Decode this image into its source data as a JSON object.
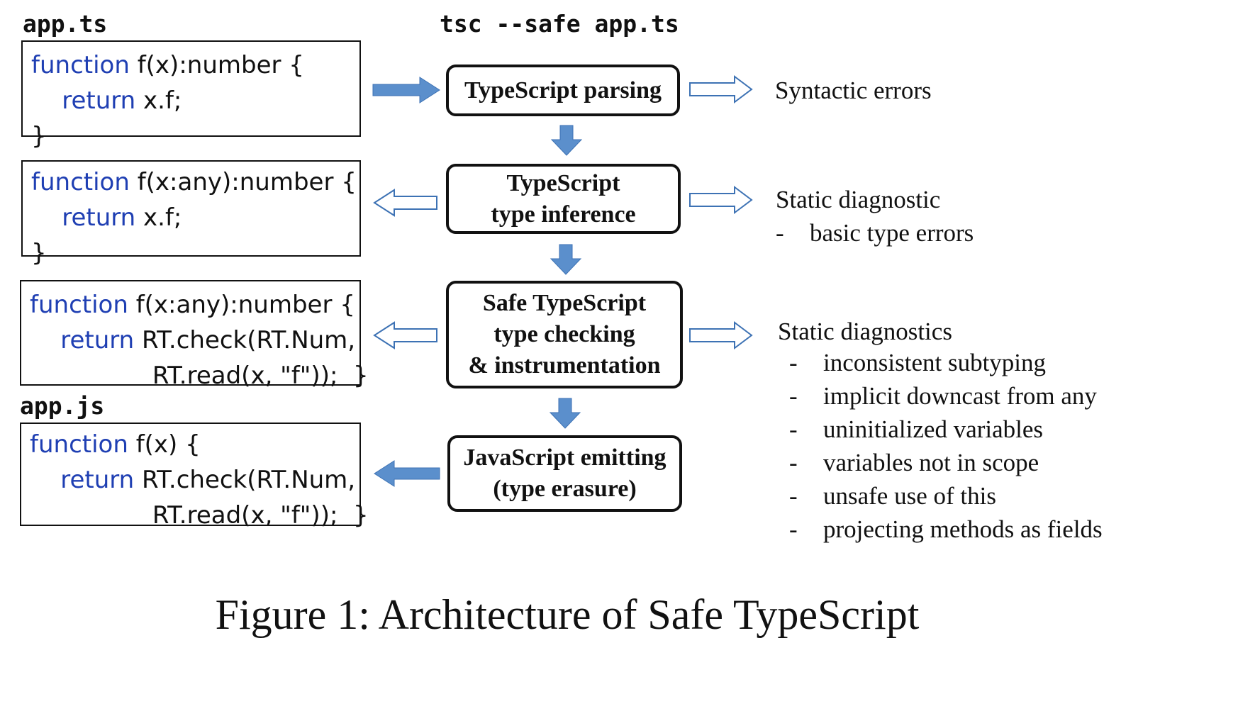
{
  "labels": {
    "app_ts": "app.ts",
    "command": "tsc --safe app.ts",
    "app_js": "app.js"
  },
  "code_boxes": [
    {
      "lines": [
        [
          {
            "kw": "function"
          },
          {
            "t": " f(x):number {"
          }
        ],
        [
          {
            "t": "    "
          },
          {
            "kw": "return"
          },
          {
            "t": " x.f;"
          }
        ],
        [
          {
            "t": "}"
          }
        ]
      ]
    },
    {
      "lines": [
        [
          {
            "kw": "function"
          },
          {
            "t": " f(x:any):number {"
          }
        ],
        [
          {
            "t": "    "
          },
          {
            "kw": "return"
          },
          {
            "t": " x.f;"
          }
        ],
        [
          {
            "t": "}"
          }
        ]
      ]
    },
    {
      "lines": [
        [
          {
            "kw": "function"
          },
          {
            "t": " f(x:any):number {"
          }
        ],
        [
          {
            "t": "    "
          },
          {
            "kw": "return"
          },
          {
            "t": " RT.check(RT.Num,"
          }
        ],
        [
          {
            "t": "                RT.read(x, \"f\"));  }"
          }
        ]
      ]
    },
    {
      "lines": [
        [
          {
            "kw": "function"
          },
          {
            "t": " f(x) {"
          }
        ],
        [
          {
            "t": "    "
          },
          {
            "kw": "return"
          },
          {
            "t": " RT.check(RT.Num,"
          }
        ],
        [
          {
            "t": "                RT.read(x, \"f\"));  }"
          }
        ]
      ]
    }
  ],
  "stages": [
    {
      "lines": [
        "TypeScript parsing"
      ]
    },
    {
      "lines": [
        "TypeScript",
        "type inference"
      ]
    },
    {
      "lines": [
        "Safe TypeScript",
        "type checking",
        "& instrumentation"
      ]
    },
    {
      "lines": [
        "JavaScript emitting",
        "(type erasure)"
      ]
    }
  ],
  "outputs": {
    "syntactic": {
      "title": "Syntactic errors"
    },
    "static_basic": {
      "title": "Static diagnostic",
      "items": [
        "basic type errors"
      ]
    },
    "static_safe": {
      "title": "Static diagnostics",
      "items": [
        "inconsistent subtyping",
        "implicit downcast from any",
        "uninitialized variables",
        "variables not in scope",
        "unsafe use of this",
        "projecting methods as fields"
      ]
    }
  },
  "caption": "Figure 1: Architecture of Safe TypeScript",
  "colors": {
    "arrow_fill": "#5b8fcc",
    "arrow_stroke": "#3d72b4",
    "keyword": "#1f3fb3"
  }
}
